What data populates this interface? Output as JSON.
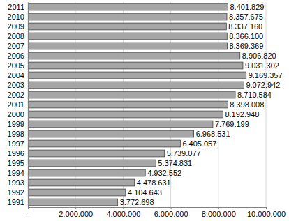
{
  "chart_data": {
    "type": "bar",
    "orientation": "horizontal",
    "categories": [
      "1991",
      "1992",
      "1993",
      "1994",
      "1995",
      "1996",
      "1997",
      "1998",
      "1999",
      "2000",
      "2001",
      "2002",
      "2003",
      "2004",
      "2005",
      "2006",
      "2007",
      "2008",
      "2009",
      "2010",
      "2011"
    ],
    "values": [
      3772698,
      4104643,
      4478631,
      4932552,
      5374831,
      5739077,
      6405057,
      6968531,
      7769199,
      8192948,
      8398008,
      8710584,
      9072942,
      9169357,
      9031302,
      8906820,
      8369369,
      8366100,
      8337160,
      8357675,
      8401829
    ],
    "value_labels": [
      "3.772.698",
      "4.104.643",
      "4.478.631",
      "4.932.552",
      "5.374.831",
      "5.739.077",
      "6.405.057",
      "6.968.531",
      "7.769.199",
      "8.192.948",
      "8.398.008",
      "8.710.584",
      "9.072.942",
      "9.169.357",
      "9.031.302",
      "8.906.820",
      "8.369.369",
      "8.366.100",
      "8.337.160",
      "8.357.675",
      "8.401.829"
    ],
    "data_labels": true,
    "color": "#a6a6a6",
    "xlim": [
      0,
      10000000
    ],
    "xticks": [
      {
        "value": 0,
        "label": "-"
      },
      {
        "value": 2000000,
        "label": "2.000.000"
      },
      {
        "value": 4000000,
        "label": "4.000.000"
      },
      {
        "value": 6000000,
        "label": "6.000.000"
      },
      {
        "value": 8000000,
        "label": "8.000.000"
      },
      {
        "value": 10000000,
        "label": "10.000.000"
      }
    ],
    "grid": true
  }
}
